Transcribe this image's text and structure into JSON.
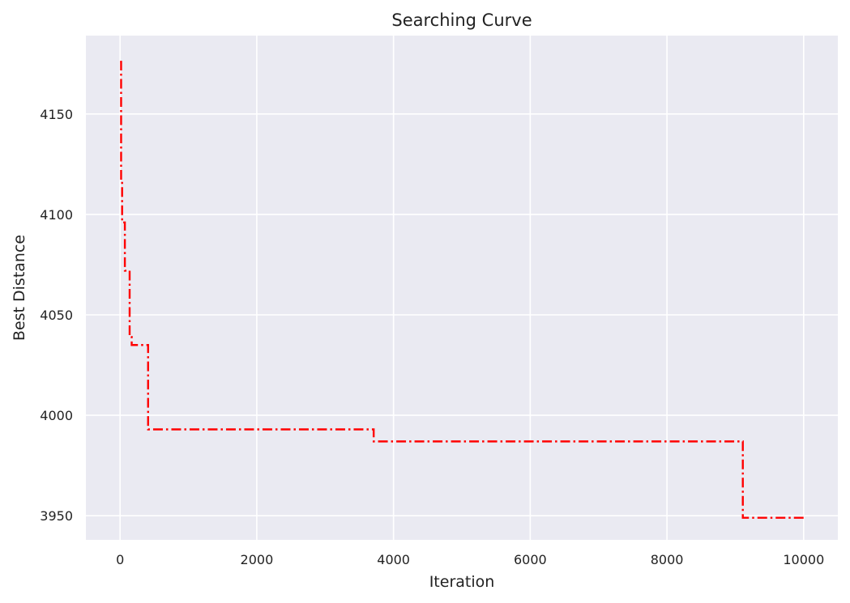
{
  "chart_data": {
    "type": "line",
    "title": "Searching Curve",
    "xlabel": "Iteration",
    "ylabel": "Best Distance",
    "xlim": [
      -500,
      10500
    ],
    "ylim": [
      3938,
      4189
    ],
    "xticks": [
      0,
      2000,
      4000,
      6000,
      8000,
      10000
    ],
    "yticks": [
      3950,
      4000,
      4050,
      4100,
      4150
    ],
    "grid": true,
    "background": "#eaeaf2",
    "series": [
      {
        "color": "#ff0000",
        "line_style": "dash-dot",
        "step": true,
        "points": [
          [
            0,
            4176
          ],
          [
            15,
            4117
          ],
          [
            30,
            4096
          ],
          [
            70,
            4072
          ],
          [
            140,
            4039
          ],
          [
            170,
            4035
          ],
          [
            400,
            4035
          ],
          [
            410,
            3993
          ],
          [
            3700,
            3993
          ],
          [
            3710,
            3987
          ],
          [
            9100,
            3987
          ],
          [
            9110,
            3949
          ],
          [
            10000,
            3949
          ]
        ]
      }
    ]
  }
}
